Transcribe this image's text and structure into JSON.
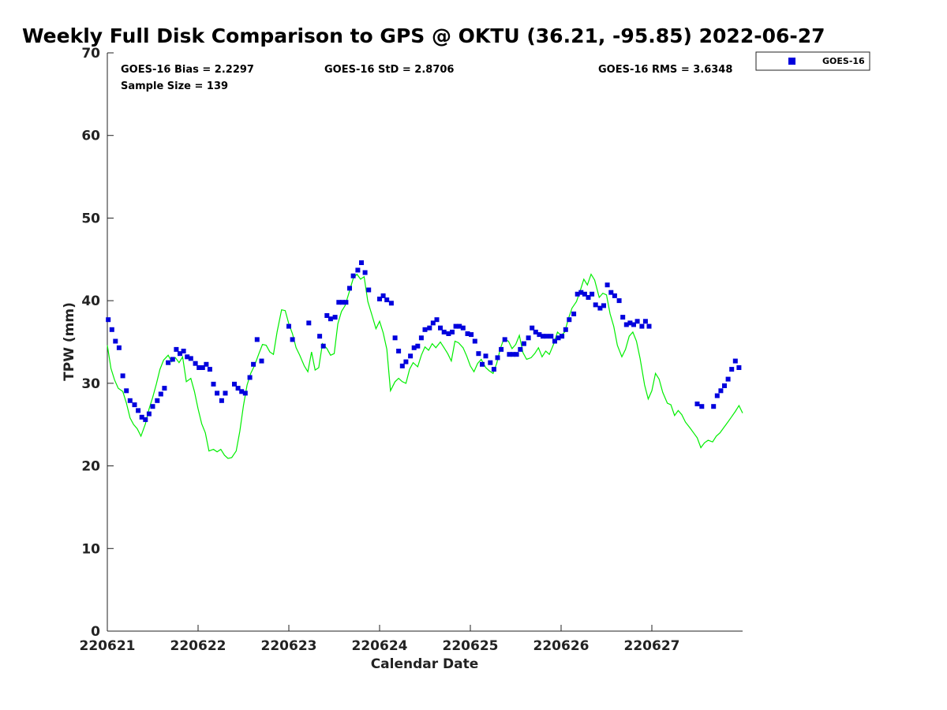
{
  "chart_data": {
    "type": "scatter",
    "title": "Weekly Full Disk Comparison to GPS @ OKTU (36.21, -95.85) 2022-06-27",
    "xlabel": "Calendar Date",
    "ylabel": "TPW (mm)",
    "xlim": [
      0,
      7
    ],
    "ylim": [
      0,
      70
    ],
    "x_tick_labels": [
      "220621",
      "220622",
      "220623",
      "220624",
      "220625",
      "220626",
      "220627"
    ],
    "x_ticks": [
      0,
      1,
      2,
      3,
      4,
      5,
      6
    ],
    "y_ticks": [
      0,
      10,
      20,
      30,
      40,
      50,
      60,
      70
    ],
    "legend_position": "outside-top-right",
    "stats": {
      "bias": "GOES-16 Bias = 2.2297",
      "std": "GOES-16 StD = 2.8706",
      "rms": "GOES-16 RMS = 3.6348",
      "sample": "Sample Size = 139"
    },
    "series": [
      {
        "name": "GOES-16",
        "kind": "scatter",
        "marker": "square",
        "color": "#0000dd",
        "points": [
          [
            0.01,
            37.7
          ],
          [
            0.05,
            36.5
          ],
          [
            0.09,
            35.1
          ],
          [
            0.13,
            34.3
          ],
          [
            0.17,
            30.9
          ],
          [
            0.21,
            29.1
          ],
          [
            0.25,
            27.9
          ],
          [
            0.3,
            27.4
          ],
          [
            0.34,
            26.7
          ],
          [
            0.38,
            25.9
          ],
          [
            0.42,
            25.6
          ],
          [
            0.46,
            26.3
          ],
          [
            0.5,
            27.2
          ],
          [
            0.55,
            27.9
          ],
          [
            0.59,
            28.7
          ],
          [
            0.63,
            29.4
          ],
          [
            0.67,
            32.5
          ],
          [
            0.72,
            32.9
          ],
          [
            0.76,
            34.1
          ],
          [
            0.8,
            33.6
          ],
          [
            0.84,
            33.9
          ],
          [
            0.88,
            33.2
          ],
          [
            0.92,
            33.0
          ],
          [
            0.97,
            32.4
          ],
          [
            1.01,
            31.9
          ],
          [
            1.05,
            31.9
          ],
          [
            1.09,
            32.3
          ],
          [
            1.13,
            31.7
          ],
          [
            1.17,
            29.9
          ],
          [
            1.21,
            28.8
          ],
          [
            1.26,
            27.9
          ],
          [
            1.3,
            28.8
          ],
          [
            1.4,
            29.9
          ],
          [
            1.44,
            29.4
          ],
          [
            1.48,
            29.0
          ],
          [
            1.52,
            28.8
          ],
          [
            1.57,
            30.7
          ],
          [
            1.61,
            32.3
          ],
          [
            1.65,
            35.3
          ],
          [
            1.7,
            32.7
          ],
          [
            2.0,
            36.9
          ],
          [
            2.04,
            35.3
          ],
          [
            2.22,
            37.3
          ],
          [
            2.34,
            35.7
          ],
          [
            2.38,
            34.5
          ],
          [
            2.42,
            38.2
          ],
          [
            2.46,
            37.8
          ],
          [
            2.51,
            38.0
          ],
          [
            2.55,
            39.8
          ],
          [
            2.59,
            39.8
          ],
          [
            2.63,
            39.8
          ],
          [
            2.67,
            41.5
          ],
          [
            2.71,
            43.0
          ],
          [
            2.76,
            43.7
          ],
          [
            2.8,
            44.6
          ],
          [
            2.84,
            43.4
          ],
          [
            2.88,
            41.3
          ],
          [
            3.0,
            40.2
          ],
          [
            3.04,
            40.6
          ],
          [
            3.08,
            40.1
          ],
          [
            3.13,
            39.7
          ],
          [
            3.17,
            35.5
          ],
          [
            3.21,
            33.9
          ],
          [
            3.25,
            32.1
          ],
          [
            3.29,
            32.6
          ],
          [
            3.34,
            33.3
          ],
          [
            3.38,
            34.3
          ],
          [
            3.42,
            34.5
          ],
          [
            3.46,
            35.5
          ],
          [
            3.5,
            36.5
          ],
          [
            3.55,
            36.7
          ],
          [
            3.59,
            37.3
          ],
          [
            3.63,
            37.7
          ],
          [
            3.67,
            36.7
          ],
          [
            3.71,
            36.2
          ],
          [
            3.76,
            36.0
          ],
          [
            3.8,
            36.2
          ],
          [
            3.84,
            36.9
          ],
          [
            3.88,
            36.9
          ],
          [
            3.92,
            36.7
          ],
          [
            3.97,
            36.0
          ],
          [
            4.01,
            35.9
          ],
          [
            4.05,
            35.1
          ],
          [
            4.09,
            33.6
          ],
          [
            4.13,
            32.3
          ],
          [
            4.17,
            33.3
          ],
          [
            4.22,
            32.5
          ],
          [
            4.26,
            31.7
          ],
          [
            4.3,
            33.1
          ],
          [
            4.34,
            34.1
          ],
          [
            4.38,
            35.3
          ],
          [
            4.43,
            33.5
          ],
          [
            4.47,
            33.5
          ],
          [
            4.51,
            33.5
          ],
          [
            4.55,
            34.1
          ],
          [
            4.59,
            34.8
          ],
          [
            4.64,
            35.5
          ],
          [
            4.68,
            36.7
          ],
          [
            4.72,
            36.2
          ],
          [
            4.76,
            35.9
          ],
          [
            4.8,
            35.7
          ],
          [
            4.84,
            35.7
          ],
          [
            4.89,
            35.7
          ],
          [
            4.93,
            35.1
          ],
          [
            4.97,
            35.5
          ],
          [
            5.01,
            35.7
          ],
          [
            5.05,
            36.5
          ],
          [
            5.09,
            37.7
          ],
          [
            5.14,
            38.4
          ],
          [
            5.18,
            40.8
          ],
          [
            5.22,
            41.0
          ],
          [
            5.26,
            40.8
          ],
          [
            5.3,
            40.4
          ],
          [
            5.34,
            40.8
          ],
          [
            5.38,
            39.5
          ],
          [
            5.43,
            39.1
          ],
          [
            5.47,
            39.4
          ],
          [
            5.51,
            41.9
          ],
          [
            5.55,
            41.0
          ],
          [
            5.59,
            40.6
          ],
          [
            5.64,
            40.0
          ],
          [
            5.68,
            38.0
          ],
          [
            5.72,
            37.1
          ],
          [
            5.76,
            37.3
          ],
          [
            5.8,
            37.1
          ],
          [
            5.84,
            37.5
          ],
          [
            5.89,
            36.9
          ],
          [
            5.93,
            37.5
          ],
          [
            5.97,
            36.9
          ],
          [
            6.5,
            27.5
          ],
          [
            6.55,
            27.2
          ],
          [
            6.68,
            27.2
          ],
          [
            6.72,
            28.5
          ],
          [
            6.76,
            29.1
          ],
          [
            6.8,
            29.7
          ],
          [
            6.84,
            30.5
          ],
          [
            6.88,
            31.7
          ],
          [
            6.92,
            32.7
          ],
          [
            6.96,
            31.9
          ]
        ]
      },
      {
        "kind": "line",
        "color": "#00ee00",
        "points": [
          [
            0.0,
            34.6
          ],
          [
            0.04,
            31.8
          ],
          [
            0.08,
            30.4
          ],
          [
            0.12,
            29.4
          ],
          [
            0.17,
            29.0
          ],
          [
            0.21,
            27.6
          ],
          [
            0.25,
            25.8
          ],
          [
            0.29,
            25.0
          ],
          [
            0.33,
            24.5
          ],
          [
            0.37,
            23.6
          ],
          [
            0.42,
            25.1
          ],
          [
            0.46,
            26.9
          ],
          [
            0.5,
            28.3
          ],
          [
            0.54,
            29.9
          ],
          [
            0.58,
            31.7
          ],
          [
            0.62,
            32.8
          ],
          [
            0.67,
            33.4
          ],
          [
            0.71,
            32.6
          ],
          [
            0.75,
            33.1
          ],
          [
            0.79,
            32.5
          ],
          [
            0.83,
            33.2
          ],
          [
            0.87,
            30.2
          ],
          [
            0.92,
            30.6
          ],
          [
            0.96,
            29.0
          ],
          [
            1.0,
            26.9
          ],
          [
            1.04,
            25.1
          ],
          [
            1.08,
            24.0
          ],
          [
            1.12,
            21.8
          ],
          [
            1.17,
            22.0
          ],
          [
            1.21,
            21.7
          ],
          [
            1.25,
            22.0
          ],
          [
            1.29,
            21.3
          ],
          [
            1.33,
            20.9
          ],
          [
            1.37,
            21.0
          ],
          [
            1.42,
            21.8
          ],
          [
            1.46,
            24.2
          ],
          [
            1.5,
            27.3
          ],
          [
            1.54,
            29.8
          ],
          [
            1.58,
            31.2
          ],
          [
            1.62,
            32.1
          ],
          [
            1.67,
            33.6
          ],
          [
            1.71,
            34.7
          ],
          [
            1.75,
            34.6
          ],
          [
            1.79,
            33.8
          ],
          [
            1.83,
            33.5
          ],
          [
            1.87,
            36.2
          ],
          [
            1.92,
            38.9
          ],
          [
            1.96,
            38.8
          ],
          [
            2.0,
            37.2
          ],
          [
            2.04,
            36.0
          ],
          [
            2.08,
            34.3
          ],
          [
            2.12,
            33.4
          ],
          [
            2.17,
            32.1
          ],
          [
            2.21,
            31.4
          ],
          [
            2.25,
            33.8
          ],
          [
            2.29,
            31.6
          ],
          [
            2.33,
            31.9
          ],
          [
            2.37,
            34.8
          ],
          [
            2.42,
            34.2
          ],
          [
            2.46,
            33.4
          ],
          [
            2.5,
            33.6
          ],
          [
            2.54,
            37.2
          ],
          [
            2.58,
            38.7
          ],
          [
            2.62,
            39.4
          ],
          [
            2.67,
            41.2
          ],
          [
            2.71,
            42.7
          ],
          [
            2.75,
            43.2
          ],
          [
            2.79,
            42.6
          ],
          [
            2.83,
            42.9
          ],
          [
            2.87,
            39.9
          ],
          [
            2.92,
            38.1
          ],
          [
            2.96,
            36.6
          ],
          [
            3.0,
            37.5
          ],
          [
            3.04,
            36.1
          ],
          [
            3.08,
            34.1
          ],
          [
            3.12,
            29.1
          ],
          [
            3.17,
            30.2
          ],
          [
            3.21,
            30.6
          ],
          [
            3.25,
            30.2
          ],
          [
            3.29,
            30.0
          ],
          [
            3.33,
            31.7
          ],
          [
            3.37,
            32.5
          ],
          [
            3.42,
            32.0
          ],
          [
            3.46,
            33.4
          ],
          [
            3.5,
            34.4
          ],
          [
            3.54,
            34.0
          ],
          [
            3.58,
            34.8
          ],
          [
            3.62,
            34.3
          ],
          [
            3.67,
            35.0
          ],
          [
            3.71,
            34.3
          ],
          [
            3.75,
            33.6
          ],
          [
            3.79,
            32.7
          ],
          [
            3.83,
            35.1
          ],
          [
            3.87,
            34.9
          ],
          [
            3.92,
            34.3
          ],
          [
            3.96,
            33.3
          ],
          [
            4.0,
            32.1
          ],
          [
            4.04,
            31.4
          ],
          [
            4.08,
            32.4
          ],
          [
            4.12,
            32.9
          ],
          [
            4.17,
            31.9
          ],
          [
            4.21,
            31.5
          ],
          [
            4.25,
            31.2
          ],
          [
            4.29,
            32.4
          ],
          [
            4.33,
            34.2
          ],
          [
            4.37,
            35.4
          ],
          [
            4.42,
            35.1
          ],
          [
            4.46,
            34.2
          ],
          [
            4.5,
            34.7
          ],
          [
            4.54,
            35.8
          ],
          [
            4.58,
            33.7
          ],
          [
            4.62,
            32.9
          ],
          [
            4.67,
            33.1
          ],
          [
            4.71,
            33.6
          ],
          [
            4.75,
            34.3
          ],
          [
            4.79,
            33.2
          ],
          [
            4.83,
            33.9
          ],
          [
            4.87,
            33.5
          ],
          [
            4.92,
            34.8
          ],
          [
            4.96,
            36.2
          ],
          [
            5.0,
            35.8
          ],
          [
            5.04,
            36.2
          ],
          [
            5.08,
            37.8
          ],
          [
            5.12,
            39.1
          ],
          [
            5.17,
            39.9
          ],
          [
            5.21,
            41.2
          ],
          [
            5.25,
            42.6
          ],
          [
            5.29,
            41.9
          ],
          [
            5.33,
            43.2
          ],
          [
            5.37,
            42.5
          ],
          [
            5.42,
            40.4
          ],
          [
            5.46,
            40.9
          ],
          [
            5.5,
            40.7
          ],
          [
            5.54,
            38.4
          ],
          [
            5.58,
            36.9
          ],
          [
            5.62,
            34.6
          ],
          [
            5.67,
            33.2
          ],
          [
            5.71,
            34.1
          ],
          [
            5.75,
            35.7
          ],
          [
            5.79,
            36.2
          ],
          [
            5.83,
            35.1
          ],
          [
            5.87,
            33.0
          ],
          [
            5.92,
            29.8
          ],
          [
            5.96,
            28.1
          ],
          [
            6.0,
            29.1
          ],
          [
            6.04,
            31.2
          ],
          [
            6.08,
            30.5
          ],
          [
            6.12,
            28.9
          ],
          [
            6.17,
            27.6
          ],
          [
            6.21,
            27.4
          ],
          [
            6.25,
            26.1
          ],
          [
            6.29,
            26.7
          ],
          [
            6.33,
            26.2
          ],
          [
            6.37,
            25.3
          ],
          [
            6.42,
            24.6
          ],
          [
            6.46,
            24.0
          ],
          [
            6.5,
            23.4
          ],
          [
            6.54,
            22.2
          ],
          [
            6.58,
            22.8
          ],
          [
            6.62,
            23.1
          ],
          [
            6.67,
            22.9
          ],
          [
            6.71,
            23.6
          ],
          [
            6.75,
            24.0
          ],
          [
            6.79,
            24.6
          ],
          [
            6.83,
            25.2
          ],
          [
            6.87,
            25.8
          ],
          [
            6.92,
            26.6
          ],
          [
            6.96,
            27.3
          ],
          [
            7.0,
            26.4
          ]
        ]
      }
    ]
  }
}
